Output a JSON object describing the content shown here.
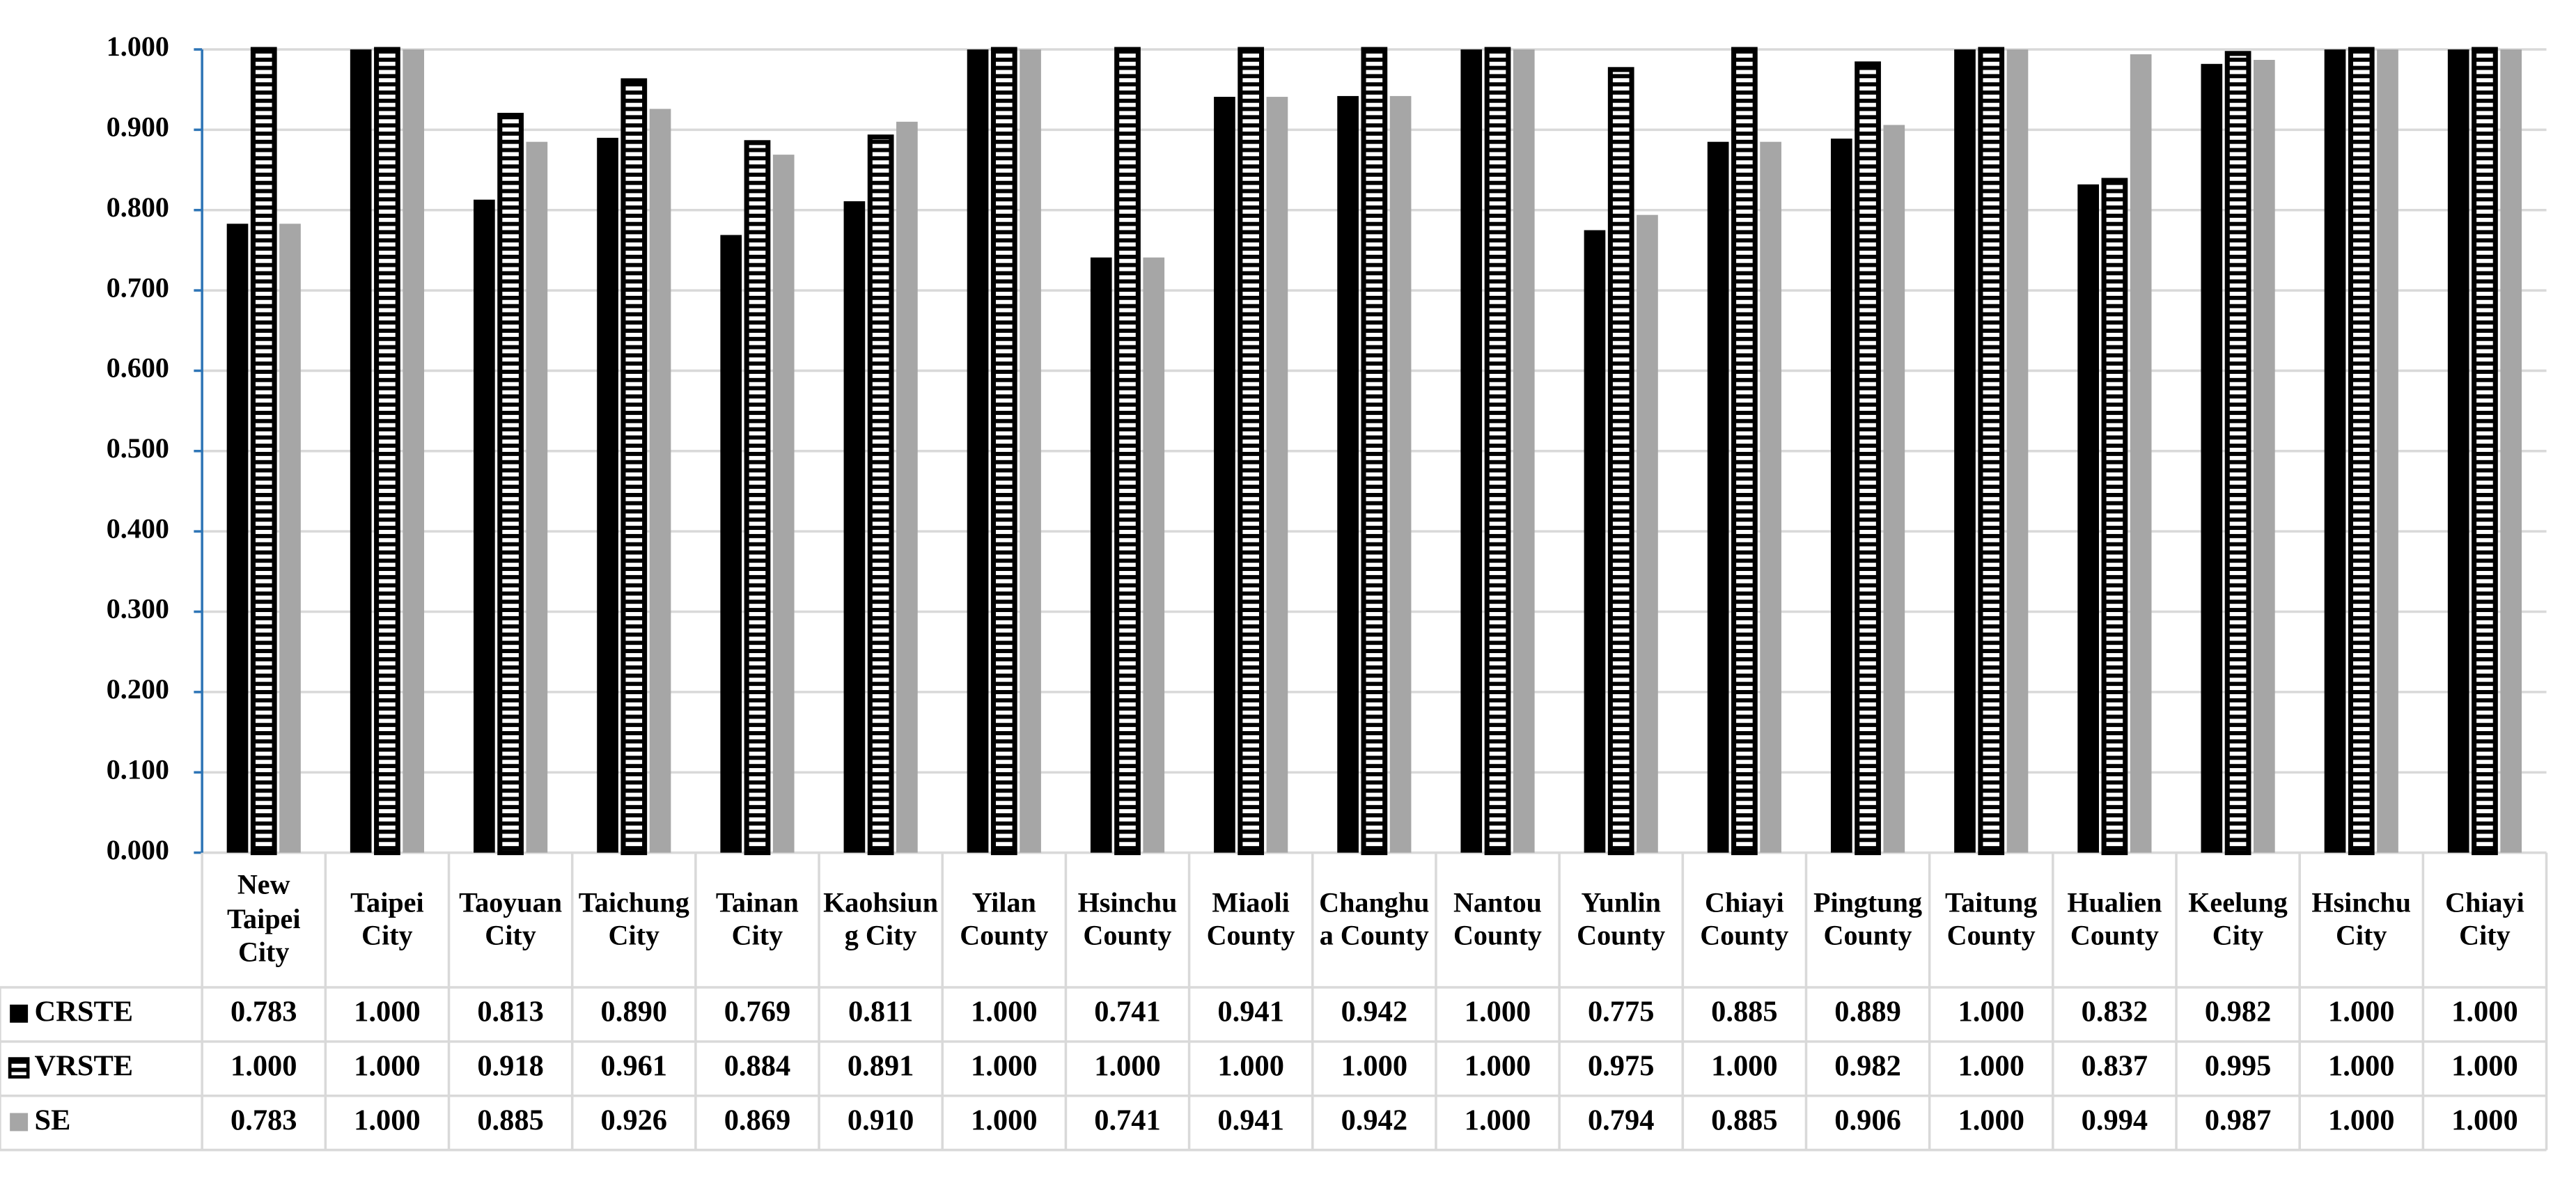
{
  "chart_data": {
    "type": "bar",
    "categories": [
      "New Taipei City",
      "Taipei City",
      "Taoyuan City",
      "Taichung City",
      "Tainan City",
      "Kaohsiung City",
      "Yilan County",
      "Hsinchu County",
      "Miaoli County",
      "Changhua County",
      "Nantou County",
      "Yunlin County",
      "Chiayi County",
      "Pingtung County",
      "Taitung County",
      "Hualien County",
      "Keelung City",
      "Hsinchu City",
      "Chiayi City"
    ],
    "series": [
      {
        "name": "CRSTE",
        "color": "#000000",
        "pattern": "solid",
        "values": [
          0.783,
          1,
          0.813,
          0.89,
          0.769,
          0.811,
          1,
          0.741,
          0.941,
          0.942,
          1,
          0.775,
          0.885,
          0.889,
          1,
          0.832,
          0.982,
          1,
          1
        ],
        "value_labels": [
          "0.783",
          "1.000",
          "0.813",
          "0.890",
          "0.769",
          "0.811",
          "1.000",
          "0.741",
          "0.941",
          "0.942",
          "1.000",
          "0.775",
          "0.885",
          "0.889",
          "1.000",
          "0.832",
          "0.982",
          "1.000",
          "1.000"
        ]
      },
      {
        "name": "VRSTE",
        "color": "#000000",
        "pattern": "horizontal-stripes",
        "values": [
          1,
          1,
          0.918,
          0.961,
          0.884,
          0.891,
          1,
          1,
          1,
          1,
          1,
          0.975,
          1,
          0.982,
          1,
          0.837,
          0.995,
          1,
          1
        ],
        "value_labels": [
          "1.000",
          "1.000",
          "0.918",
          "0.961",
          "0.884",
          "0.891",
          "1.000",
          "1.000",
          "1.000",
          "1.000",
          "1.000",
          "0.975",
          "1.000",
          "0.982",
          "1.000",
          "0.837",
          "0.995",
          "1.000",
          "1.000"
        ]
      },
      {
        "name": "SE",
        "color": "#a6a6a6",
        "pattern": "solid",
        "values": [
          0.783,
          1,
          0.885,
          0.926,
          0.869,
          0.91,
          1,
          0.741,
          0.941,
          0.942,
          1,
          0.794,
          0.885,
          0.906,
          1,
          0.994,
          0.987,
          1,
          1
        ],
        "value_labels": [
          "0.783",
          "1.000",
          "0.885",
          "0.926",
          "0.869",
          "0.910",
          "1.000",
          "0.741",
          "0.941",
          "0.942",
          "1.000",
          "0.794",
          "0.885",
          "0.906",
          "1.000",
          "0.994",
          "0.987",
          "1.000",
          "1.000"
        ]
      }
    ],
    "ylim": [
      0,
      1
    ],
    "yticks": [
      {
        "value": 0,
        "label": "0.000"
      },
      {
        "value": 0.1,
        "label": "0.100"
      },
      {
        "value": 0.2,
        "label": "0.200"
      },
      {
        "value": 0.3,
        "label": "0.300"
      },
      {
        "value": 0.4,
        "label": "0.400"
      },
      {
        "value": 0.5,
        "label": "0.500"
      },
      {
        "value": 0.6,
        "label": "0.600"
      },
      {
        "value": 0.7,
        "label": "0.700"
      },
      {
        "value": 0.8,
        "label": "0.800"
      },
      {
        "value": 0.9,
        "label": "0.900"
      },
      {
        "value": 1,
        "label": "1.000"
      }
    ],
    "grid": true
  }
}
